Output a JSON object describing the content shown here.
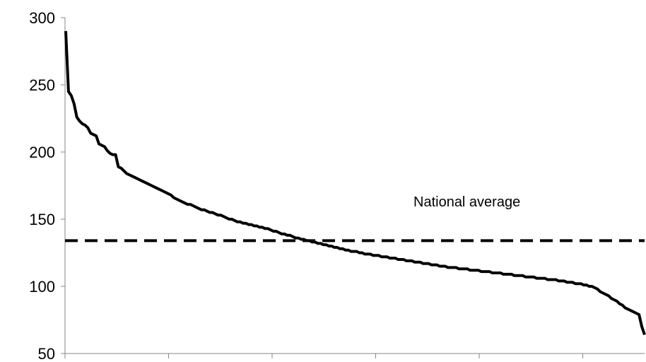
{
  "chart_data": {
    "type": "line",
    "ylim": [
      50,
      300
    ],
    "yticks": [
      "50",
      "100",
      "150",
      "200",
      "250",
      "300"
    ],
    "x_tick_count": 6,
    "grid": false,
    "legend": "none",
    "series": [
      {
        "color": "#000000",
        "style": "solid",
        "values": [
          290,
          245,
          242,
          236,
          226,
          223,
          221,
          220,
          218,
          214,
          213,
          212,
          206,
          205,
          204,
          201,
          199,
          198,
          198,
          189,
          188,
          186,
          184,
          183,
          182,
          181,
          180,
          179,
          178,
          177,
          176,
          175,
          174,
          173,
          172,
          171,
          170,
          169,
          168,
          166,
          165,
          164,
          163,
          162,
          161,
          161,
          160,
          159,
          158,
          157,
          157,
          156,
          155,
          155,
          154,
          153,
          153,
          152,
          151,
          150,
          150,
          149,
          148,
          148,
          147,
          147,
          146,
          146,
          145,
          145,
          144,
          144,
          143,
          143,
          142,
          141,
          141,
          140,
          139,
          139,
          138,
          138,
          137,
          136,
          136,
          135,
          135,
          134,
          134,
          133,
          133,
          132,
          132,
          131,
          131,
          130,
          130,
          129,
          129,
          128,
          128,
          127,
          127,
          126,
          126,
          126,
          125,
          125,
          124,
          124,
          124,
          123,
          123,
          123,
          122,
          122,
          122,
          121,
          121,
          121,
          120,
          120,
          120,
          119,
          119,
          119,
          118,
          118,
          118,
          117,
          117,
          117,
          116,
          116,
          116,
          115,
          115,
          115,
          114,
          114,
          114,
          114,
          113,
          113,
          113,
          113,
          112,
          112,
          112,
          112,
          111,
          111,
          111,
          111,
          110,
          110,
          110,
          110,
          109,
          109,
          109,
          109,
          108,
          108,
          108,
          108,
          107,
          107,
          107,
          107,
          106,
          106,
          106,
          106,
          105,
          105,
          105,
          105,
          104,
          104,
          104,
          103,
          103,
          103,
          102,
          102,
          102,
          101,
          101,
          100,
          100,
          99,
          98,
          96,
          95,
          94,
          93,
          91,
          90,
          89,
          87,
          86,
          84,
          83,
          82,
          81,
          80,
          79,
          70,
          64
        ]
      },
      {
        "name": "National average",
        "color": "#000000",
        "style": "dashed",
        "constant": 134
      }
    ],
    "annotations": [
      {
        "text": "National average"
      }
    ]
  }
}
